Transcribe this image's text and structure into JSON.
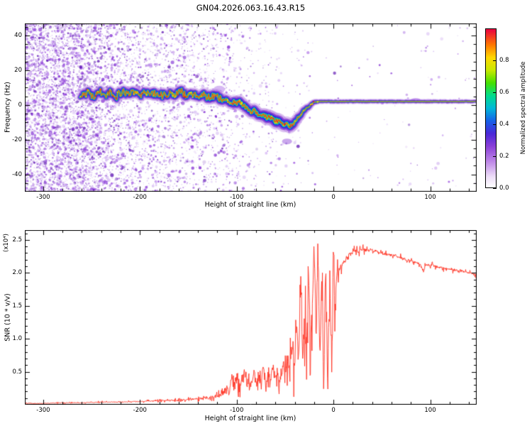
{
  "title": "GN04.2026.063.16.43.R15",
  "chart_data": [
    {
      "type": "heatmap",
      "panel": "doppler-spectrogram",
      "xlabel": "Height of straight line (km)",
      "ylabel": "Frequency (Hz)",
      "xlim": [
        -319,
        148
      ],
      "ylim": [
        -50,
        47
      ],
      "x_minor_step": 20,
      "y_minor_step": 5,
      "xticks": [
        {
          "v": -300,
          "t": "-300"
        },
        {
          "v": -200,
          "t": "-200"
        },
        {
          "v": -100,
          "t": "-100"
        },
        {
          "v": 0,
          "t": "0"
        },
        {
          "v": 100,
          "t": "100"
        }
      ],
      "yticks": [
        {
          "v": 40,
          "t": "40"
        },
        {
          "v": 20,
          "t": "20"
        },
        {
          "v": 0,
          "t": "0"
        },
        {
          "v": -20,
          "t": "-20"
        },
        {
          "v": -40,
          "t": "-40"
        }
      ],
      "colorbar": {
        "label": "Normalized spectral amplitude",
        "range": [
          0,
          1
        ],
        "ticks": [
          {
            "v": 0.0,
            "t": "0.0"
          },
          {
            "v": 0.2,
            "t": "0.2"
          },
          {
            "v": 0.4,
            "t": "0.4"
          },
          {
            "v": 0.6,
            "t": "0.6"
          },
          {
            "v": 0.8,
            "t": "0.8"
          }
        ],
        "stops": [
          [
            0.0,
            "#ffffff"
          ],
          [
            0.07,
            "#ecdcf7"
          ],
          [
            0.16,
            "#c08ae8"
          ],
          [
            0.26,
            "#8a3fd8"
          ],
          [
            0.34,
            "#4a28d8"
          ],
          [
            0.42,
            "#1660e8"
          ],
          [
            0.5,
            "#00b8d8"
          ],
          [
            0.58,
            "#00dc8c"
          ],
          [
            0.66,
            "#44e000"
          ],
          [
            0.74,
            "#c8e800"
          ],
          [
            0.82,
            "#ffd800"
          ],
          [
            0.9,
            "#ff7800"
          ],
          [
            1.0,
            "#e80040"
          ]
        ]
      },
      "noise": {
        "count": 26000,
        "palette": [
          "#7a1fd0",
          "#9b4fe0",
          "#b884ec",
          "#5a0fb0",
          "#c9a6f0",
          "#8a3fd8"
        ],
        "density": [
          [
            -319,
            0.95
          ],
          [
            -262,
            0.9
          ],
          [
            -230,
            0.5
          ],
          [
            -200,
            0.42
          ],
          [
            -170,
            0.33
          ],
          [
            -140,
            0.26
          ],
          [
            -120,
            0.2
          ],
          [
            -100,
            0.14
          ],
          [
            -80,
            0.09
          ],
          [
            -60,
            0.06
          ],
          [
            -40,
            0.035
          ],
          [
            -20,
            0.018
          ],
          [
            0,
            0.012
          ],
          [
            50,
            0.008
          ],
          [
            100,
            0.012
          ],
          [
            148,
            0.008
          ]
        ]
      },
      "blobs": [
        [
          -150,
          6,
          6,
          4,
          "#b06fe0",
          0.35
        ],
        [
          -118,
          9,
          8,
          5,
          "#9b4fe0",
          0.4
        ],
        [
          -48,
          -21,
          7,
          4,
          "#8a3fd8",
          0.45
        ],
        [
          60,
          2,
          4,
          2,
          "#b884ec",
          0.4
        ],
        [
          85,
          2.5,
          8,
          3.5,
          "#9b4fe0",
          0.55
        ],
        [
          98,
          2.5,
          5,
          2.5,
          "#b884ec",
          0.5
        ]
      ],
      "ridge": {
        "start": -262,
        "points": [
          [
            -262,
            6
          ],
          [
            -255,
            7
          ],
          [
            -248,
            5
          ],
          [
            -242,
            8
          ],
          [
            -236,
            6
          ],
          [
            -230,
            7
          ],
          [
            -224,
            5
          ],
          [
            -218,
            8
          ],
          [
            -212,
            6
          ],
          [
            -206,
            7
          ],
          [
            -200,
            5
          ],
          [
            -194,
            8
          ],
          [
            -188,
            6
          ],
          [
            -182,
            7
          ],
          [
            -176,
            5
          ],
          [
            -170,
            7
          ],
          [
            -164,
            6
          ],
          [
            -158,
            8
          ],
          [
            -152,
            5
          ],
          [
            -146,
            7
          ],
          [
            -140,
            5
          ],
          [
            -134,
            6
          ],
          [
            -128,
            4
          ],
          [
            -122,
            6
          ],
          [
            -116,
            3
          ],
          [
            -110,
            4
          ],
          [
            -104,
            1
          ],
          [
            -98,
            2
          ],
          [
            -92,
            -1
          ],
          [
            -86,
            -3
          ],
          [
            -80,
            -4
          ],
          [
            -74,
            -6
          ],
          [
            -68,
            -7
          ],
          [
            -62,
            -9
          ],
          [
            -56,
            -10
          ],
          [
            -50,
            -11
          ],
          [
            -45,
            -12
          ],
          [
            -40,
            -10
          ],
          [
            -36,
            -7
          ],
          [
            -32,
            -4
          ],
          [
            -28,
            -2
          ],
          [
            -24,
            0
          ],
          [
            -20,
            1.5
          ],
          [
            -15,
            2
          ],
          [
            0,
            2
          ],
          [
            50,
            2
          ],
          [
            100,
            2
          ],
          [
            148,
            2
          ]
        ],
        "wiggle": [
          [
            -262,
            2.2
          ],
          [
            -130,
            2.0
          ],
          [
            -60,
            1.4
          ],
          [
            -30,
            0.7
          ],
          [
            -15,
            0.2
          ],
          [
            148,
            0.12
          ]
        ],
        "halo": [
          [
            -262,
            1.0
          ],
          [
            -140,
            1.1
          ],
          [
            -90,
            1.3
          ],
          [
            -50,
            1.5
          ],
          [
            -30,
            1.0
          ],
          [
            -15,
            0.55
          ],
          [
            148,
            0.5
          ]
        ],
        "layers": [
          [
            13,
            "#c08ae8",
            0.2
          ],
          [
            8.5,
            "#7a2fd0",
            0.32
          ],
          [
            5.2,
            "#2a28dc",
            0.55
          ],
          [
            3.1,
            "#00b0e0",
            0.8
          ],
          [
            1.9,
            "#00dc64",
            0.95
          ],
          [
            1.2,
            "#e8e800",
            0.95
          ],
          [
            0.7,
            "#e80030",
            0.9
          ]
        ],
        "hot_dot_colors": [
          "#e8e800",
          "#ffb000",
          "#ff4000",
          "#e80040"
        ]
      }
    },
    {
      "type": "line",
      "panel": "snr",
      "xlabel": "Height of straight line (km)",
      "ylabel": "SNR (10 * v/v)",
      "y_multiplier_label": "(x10⁴)",
      "xlim": [
        -319,
        148
      ],
      "ylim": [
        0,
        2.65
      ],
      "x_minor_step": 20,
      "y_minor_step": 0.1,
      "xticks": [
        {
          "v": -300,
          "t": "-300"
        },
        {
          "v": -200,
          "t": "-200"
        },
        {
          "v": -100,
          "t": "-100"
        },
        {
          "v": 0,
          "t": "0"
        },
        {
          "v": 100,
          "t": "100"
        }
      ],
      "yticks": [
        {
          "v": 0.5,
          "t": "0.5"
        },
        {
          "v": 1.0,
          "t": "1.0"
        },
        {
          "v": 1.5,
          "t": "1.5"
        },
        {
          "v": 2.0,
          "t": "2.0"
        },
        {
          "v": 2.5,
          "t": "2.5"
        }
      ],
      "jitter": [
        [
          -319,
          0.008
        ],
        [
          -200,
          0.012
        ],
        [
          -150,
          0.02
        ],
        [
          -120,
          0.05
        ],
        [
          -110,
          0.1
        ],
        [
          -100,
          0.12
        ],
        [
          -60,
          0.15
        ],
        [
          -45,
          0.3
        ],
        [
          -30,
          0.45
        ],
        [
          -15,
          0.5
        ],
        [
          0,
          0.45
        ],
        [
          5,
          0.12
        ],
        [
          10,
          0.05
        ],
        [
          40,
          0.04
        ],
        [
          148,
          0.035
        ]
      ],
      "series": [
        {
          "name": "SNR",
          "color": "#ff3222",
          "points": [
            [
              -319,
              0.02
            ],
            [
              -300,
              0.02
            ],
            [
              -280,
              0.03
            ],
            [
              -260,
              0.03
            ],
            [
              -240,
              0.04
            ],
            [
              -220,
              0.04
            ],
            [
              -200,
              0.05
            ],
            [
              -180,
              0.06
            ],
            [
              -160,
              0.07
            ],
            [
              -150,
              0.08
            ],
            [
              -140,
              0.09
            ],
            [
              -130,
              0.1
            ],
            [
              -125,
              0.12
            ],
            [
              -120,
              0.13
            ],
            [
              -115,
              0.15
            ],
            [
              -110,
              0.3
            ],
            [
              -108,
              0.15
            ],
            [
              -105,
              0.45
            ],
            [
              -103,
              0.2
            ],
            [
              -100,
              0.5
            ],
            [
              -98,
              0.25
            ],
            [
              -95,
              0.35
            ],
            [
              -92,
              0.55
            ],
            [
              -90,
              0.25
            ],
            [
              -88,
              0.45
            ],
            [
              -85,
              0.3
            ],
            [
              -82,
              0.5
            ],
            [
              -80,
              0.28
            ],
            [
              -78,
              0.42
            ],
            [
              -75,
              0.35
            ],
            [
              -72,
              0.55
            ],
            [
              -70,
              0.3
            ],
            [
              -68,
              0.45
            ],
            [
              -65,
              0.38
            ],
            [
              -62,
              0.6
            ],
            [
              -60,
              0.35
            ],
            [
              -58,
              0.5
            ],
            [
              -55,
              0.42
            ],
            [
              -52,
              0.65
            ],
            [
              -50,
              0.4
            ],
            [
              -48,
              0.75
            ],
            [
              -45,
              0.5
            ],
            [
              -43,
              0.9
            ],
            [
              -40,
              0.55
            ],
            [
              -38,
              1.2
            ],
            [
              -36,
              0.6
            ],
            [
              -34,
              1.9
            ],
            [
              -32,
              0.7
            ],
            [
              -30,
              1.3
            ],
            [
              -28,
              0.8
            ],
            [
              -26,
              2.05
            ],
            [
              -24,
              0.9
            ],
            [
              -22,
              1.6
            ],
            [
              -20,
              2.45
            ],
            [
              -18,
              1.0
            ],
            [
              -16,
              2.5
            ],
            [
              -14,
              0.6
            ],
            [
              -12,
              1.9
            ],
            [
              -10,
              0.1
            ],
            [
              -8,
              2.3
            ],
            [
              -6,
              0.15
            ],
            [
              -4,
              2.0
            ],
            [
              -2,
              0.1
            ],
            [
              -1,
              1.2
            ],
            [
              0,
              2.6
            ],
            [
              1,
              1.8
            ],
            [
              2,
              1.4
            ],
            [
              3,
              1.9
            ],
            [
              5,
              2.0
            ],
            [
              8,
              2.1
            ],
            [
              10,
              2.15
            ],
            [
              14,
              2.25
            ],
            [
              18,
              2.3
            ],
            [
              22,
              2.35
            ],
            [
              26,
              2.32
            ],
            [
              30,
              2.36
            ],
            [
              35,
              2.33
            ],
            [
              40,
              2.35
            ],
            [
              45,
              2.32
            ],
            [
              50,
              2.3
            ],
            [
              55,
              2.28
            ],
            [
              60,
              2.27
            ],
            [
              65,
              2.25
            ],
            [
              70,
              2.23
            ],
            [
              75,
              2.2
            ],
            [
              80,
              2.18
            ],
            [
              85,
              2.16
            ],
            [
              90,
              2.14
            ],
            [
              93,
              2.02
            ],
            [
              95,
              2.12
            ],
            [
              100,
              2.12
            ],
            [
              105,
              2.1
            ],
            [
              110,
              2.08
            ],
            [
              115,
              2.07
            ],
            [
              120,
              2.06
            ],
            [
              125,
              2.05
            ],
            [
              130,
              2.03
            ],
            [
              135,
              2.02
            ],
            [
              140,
              2.0
            ],
            [
              145,
              1.98
            ],
            [
              148,
              1.97
            ]
          ]
        }
      ]
    }
  ]
}
